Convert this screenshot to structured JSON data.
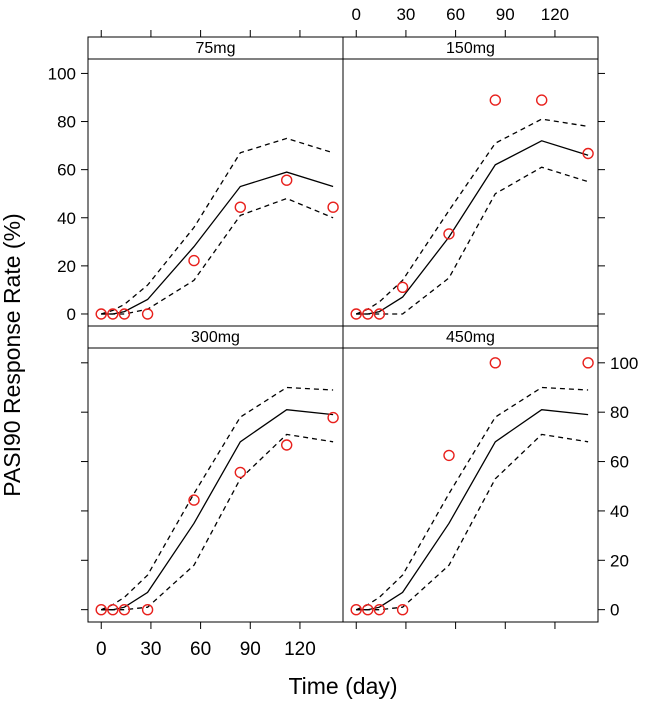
{
  "chart_data": {
    "type": "line",
    "layout": "2x2 lattice",
    "xlabel": "Time (day)",
    "ylabel": "PASI90 Response Rate (%)",
    "xlim": [
      -8,
      146
    ],
    "ylim": [
      -5,
      106
    ],
    "x_ticks": [
      0,
      30,
      60,
      90,
      120
    ],
    "y_ticks": [
      0,
      20,
      40,
      60,
      80,
      100
    ],
    "x_tick_labels": [
      "0",
      "30",
      "60",
      "90",
      "120"
    ],
    "y_tick_labels": [
      "0",
      "20",
      "40",
      "60",
      "80",
      "100"
    ],
    "legend": "none",
    "panels": [
      {
        "strip": "75mg",
        "x": [
          0,
          7,
          14,
          28,
          56,
          84,
          112,
          140
        ],
        "median": [
          0,
          0,
          1,
          6,
          28,
          53,
          59,
          53
        ],
        "upper": [
          0,
          1.5,
          4,
          12,
          36,
          67,
          73,
          67
        ],
        "lower": [
          0,
          0,
          0,
          2,
          14,
          41,
          48,
          40
        ],
        "observed": [
          0,
          0,
          0,
          0,
          22.2,
          44.4,
          55.6,
          44.4
        ]
      },
      {
        "strip": "150mg",
        "x": [
          0,
          7,
          14,
          28,
          56,
          84,
          112,
          140
        ],
        "median": [
          0,
          0,
          1,
          7,
          32,
          62,
          72,
          66
        ],
        "upper": [
          0,
          2,
          5,
          14,
          43,
          71,
          81,
          78
        ],
        "lower": [
          0,
          0,
          0,
          0,
          15,
          50,
          61,
          55
        ],
        "observed": [
          0,
          0,
          0,
          11.1,
          33.3,
          88.9,
          88.9,
          66.7
        ]
      },
      {
        "strip": "300mg",
        "x": [
          0,
          7,
          14,
          28,
          56,
          84,
          112,
          140
        ],
        "median": [
          0,
          0,
          1,
          7,
          35,
          68,
          81,
          79
        ],
        "upper": [
          0,
          2,
          5,
          14,
          47,
          78,
          90,
          89
        ],
        "lower": [
          0,
          0,
          0,
          1,
          18,
          53,
          71,
          68
        ],
        "observed": [
          0,
          0,
          0,
          0,
          44.4,
          55.6,
          66.7,
          77.8
        ]
      },
      {
        "strip": "450mg",
        "x": [
          0,
          7,
          14,
          28,
          56,
          84,
          112,
          140
        ],
        "median": [
          0,
          0,
          1,
          7,
          35,
          68,
          81,
          79
        ],
        "upper": [
          0,
          2,
          5,
          14,
          47,
          78,
          90,
          89
        ],
        "lower": [
          0,
          0,
          0,
          1,
          18,
          53,
          71,
          68
        ],
        "observed": [
          0,
          0,
          0,
          0,
          62.5,
          100,
          null,
          100
        ]
      }
    ]
  },
  "colors": {
    "observed_point": "#e8201c",
    "line": "#000000",
    "strip_background": "#ffffff"
  }
}
